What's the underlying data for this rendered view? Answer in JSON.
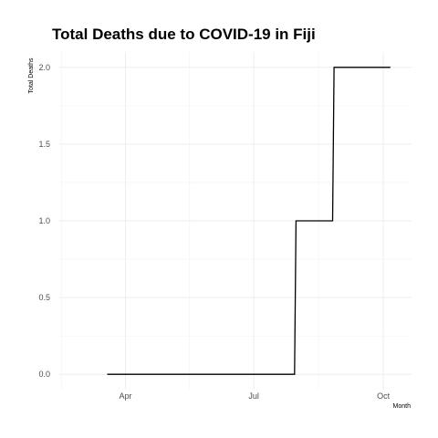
{
  "chart_data": {
    "type": "line",
    "title": "Total Deaths due to COVID-19 in Fiji",
    "xlabel": "Month",
    "ylabel": "Total Deaths",
    "x_ticks": [
      {
        "date": "2020-04-01",
        "label": "Apr"
      },
      {
        "date": "2020-07-01",
        "label": "Jul"
      },
      {
        "date": "2020-10-01",
        "label": "Oct"
      }
    ],
    "y_ticks": [
      {
        "value": 0,
        "label": "0.0"
      },
      {
        "value": 0.5,
        "label": "0.5"
      },
      {
        "value": 1,
        "label": "1.0"
      },
      {
        "value": 1.5,
        "label": "1.5"
      },
      {
        "value": 2,
        "label": "2.0"
      }
    ],
    "xlim": [
      "2020-02-14",
      "2020-10-21"
    ],
    "ylim": [
      -0.1,
      2.1
    ],
    "grid": true,
    "legend": "none",
    "line_color": "#000000",
    "series": [
      {
        "x": [
          "2020-03-19",
          "2020-07-30",
          "2020-07-31",
          "2020-08-26",
          "2020-08-27",
          "2020-10-06"
        ],
        "y": [
          0,
          0,
          1,
          1,
          2,
          2
        ]
      }
    ]
  }
}
